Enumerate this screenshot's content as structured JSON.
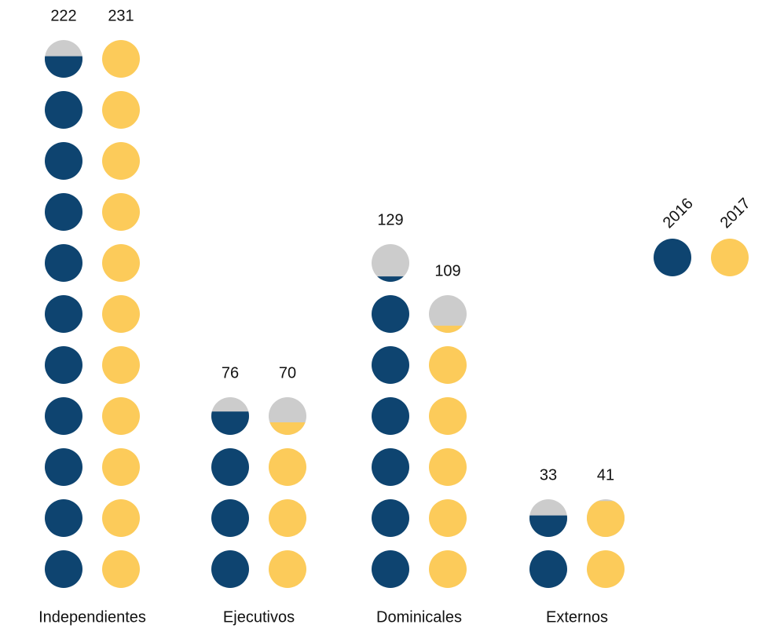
{
  "chart_data": {
    "type": "pictogram",
    "categories": [
      "Independientes",
      "Ejecutivos",
      "Dominicales",
      "Externos"
    ],
    "series": [
      {
        "name": "2016",
        "color": "#0e4470",
        "values": [
          222,
          76,
          129,
          33
        ]
      },
      {
        "name": "2017",
        "color": "#fccb5a",
        "values": [
          231,
          70,
          109,
          41
        ]
      }
    ]
  }
}
